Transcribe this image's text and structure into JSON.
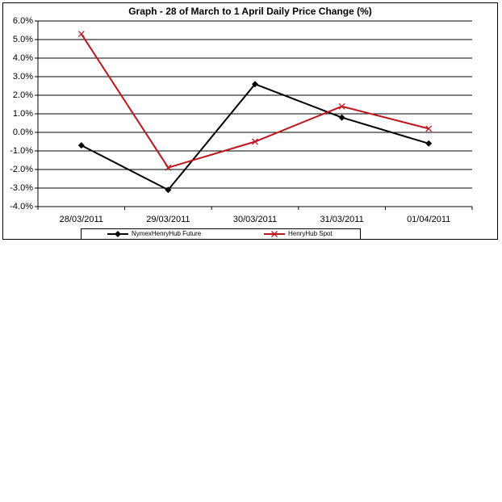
{
  "chart_data": {
    "type": "line",
    "title": "Graph -   28 of March to 1 April Daily Price Change (%)",
    "categories": [
      "28/03/2011",
      "29/03/2011",
      "30/03/2011",
      "31/03/2011",
      "01/04/2011"
    ],
    "series": [
      {
        "name": "NymexHenryHub Future",
        "color": "#000000",
        "marker": "diamond",
        "values": [
          -0.7,
          -3.1,
          2.6,
          0.8,
          -0.6
        ]
      },
      {
        "name": "HenryHub Spot",
        "color": "#c0141c",
        "marker": "x",
        "values": [
          5.3,
          -1.9,
          -0.5,
          1.4,
          0.2
        ]
      }
    ],
    "ylim": [
      -4,
      6
    ],
    "yticks": [
      {
        "value": -4,
        "label": "-4.0%"
      },
      {
        "value": -3,
        "label": "-3.0%"
      },
      {
        "value": -2,
        "label": "-2.0%"
      },
      {
        "value": -1,
        "label": "-1.0%"
      },
      {
        "value": 0,
        "label": "0.0%"
      },
      {
        "value": 1,
        "label": "1.0%"
      },
      {
        "value": 2,
        "label": "2.0%"
      },
      {
        "value": 3,
        "label": "3.0%"
      },
      {
        "value": 4,
        "label": "4.0%"
      },
      {
        "value": 5,
        "label": "5.0%"
      },
      {
        "value": 6,
        "label": "6.0%"
      }
    ],
    "grid": true,
    "legend": "bottom"
  }
}
